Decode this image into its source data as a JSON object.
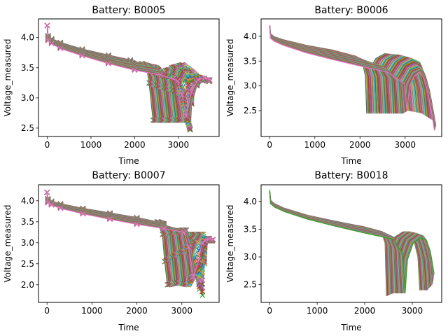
{
  "chart_data": [
    {
      "type": "line",
      "title": "Battery: B0005",
      "xlabel": "Time",
      "ylabel": "Voltage_measured",
      "xlim": [
        -200,
        3930
      ],
      "ylim": [
        2.36,
        4.31
      ],
      "xticks": [
        0,
        1000,
        2000,
        3000
      ],
      "yticks": [
        2.5,
        3.0,
        3.5,
        4.0
      ],
      "markers": "x",
      "series": [
        {
          "x": [
            0,
            20,
            100,
            300,
            800,
            1400,
            1900,
            2150,
            2280,
            2330,
            2420,
            2560,
            2700,
            2850,
            3000,
            3100
          ],
          "y": [
            4.2,
            4.03,
            3.98,
            3.92,
            3.81,
            3.71,
            3.63,
            3.57,
            3.48,
            3.25,
            2.63,
            3.2,
            3.45,
            3.5,
            3.37,
            3.3
          ]
        },
        {
          "x": [
            0,
            20,
            100,
            300,
            800,
            1400,
            1900,
            2300,
            2500,
            2560,
            2650,
            2780,
            2950,
            3100,
            3300,
            3420
          ],
          "y": [
            4.2,
            4.02,
            3.96,
            3.9,
            3.78,
            3.68,
            3.6,
            3.53,
            3.42,
            3.2,
            2.63,
            3.25,
            3.5,
            3.55,
            3.38,
            3.3
          ]
        },
        {
          "x": [
            0,
            20,
            100,
            300,
            800,
            1400,
            2000,
            2500,
            2750,
            2820,
            2900,
            3030,
            3200,
            3400,
            3560,
            3700
          ],
          "y": [
            4.2,
            4.0,
            3.95,
            3.88,
            3.76,
            3.64,
            3.56,
            3.5,
            3.38,
            3.15,
            2.63,
            3.2,
            3.4,
            3.38,
            3.32,
            3.3
          ]
        },
        {
          "x": [
            0,
            20,
            100,
            300,
            800,
            1400,
            2000,
            2600,
            3000,
            3120,
            3230,
            3270,
            3300,
            3420,
            3560,
            3700
          ],
          "y": [
            4.2,
            3.98,
            3.93,
            3.85,
            3.72,
            3.6,
            3.5,
            3.42,
            3.3,
            3.05,
            2.63,
            2.47,
            2.9,
            3.2,
            3.28,
            3.27
          ]
        },
        {
          "x": [
            0,
            20,
            100,
            300,
            800,
            1400,
            2000,
            2600,
            2980,
            3080,
            3180,
            3300,
            3450,
            3600,
            3720
          ],
          "y": [
            4.2,
            3.95,
            3.9,
            3.82,
            3.7,
            3.57,
            3.46,
            3.38,
            3.28,
            3.05,
            2.7,
            3.1,
            3.3,
            3.33,
            3.3
          ]
        }
      ]
    },
    {
      "type": "line",
      "title": "Battery: B0006",
      "xlabel": "Time",
      "ylabel": "Voltage_measured",
      "xlim": [
        -190,
        3810
      ],
      "ylim": [
        1.98,
        4.35
      ],
      "xticks": [
        0,
        1000,
        2000,
        3000
      ],
      "yticks": [
        2.5,
        3.0,
        3.5,
        4.0
      ],
      "markers": "",
      "series": [
        {
          "x": [
            0,
            20,
            100,
            300,
            800,
            1400,
            1900,
            2050,
            2120,
            2150,
            2200,
            2350,
            2550,
            2750,
            2900,
            3000,
            3050
          ],
          "y": [
            4.22,
            4.05,
            3.99,
            3.93,
            3.82,
            3.72,
            3.6,
            3.5,
            3.2,
            2.45,
            3.3,
            3.55,
            3.65,
            3.6,
            3.35,
            3.0,
            2.5
          ]
        },
        {
          "x": [
            0,
            20,
            100,
            300,
            800,
            1400,
            2000,
            2300,
            2420,
            2460,
            2520,
            2680,
            2880,
            3060,
            3200,
            3300,
            3360
          ],
          "y": [
            4.22,
            4.02,
            3.96,
            3.9,
            3.78,
            3.67,
            3.55,
            3.45,
            3.2,
            2.45,
            3.3,
            3.52,
            3.62,
            3.55,
            3.3,
            3.0,
            2.45
          ]
        },
        {
          "x": [
            0,
            20,
            100,
            300,
            800,
            1400,
            2000,
            2500,
            2680,
            2720,
            2780,
            2950,
            3150,
            3320,
            3450,
            3550,
            3620
          ],
          "y": [
            4.22,
            4.0,
            3.94,
            3.87,
            3.74,
            3.62,
            3.5,
            3.4,
            3.15,
            2.45,
            3.2,
            3.45,
            3.55,
            3.48,
            3.2,
            2.85,
            2.3
          ]
        },
        {
          "x": [
            0,
            20,
            100,
            300,
            800,
            1400,
            2000,
            2600,
            2900,
            2950,
            3000,
            3150,
            3300,
            3420,
            3540,
            3620,
            3680
          ],
          "y": [
            4.22,
            3.98,
            3.92,
            3.85,
            3.7,
            3.57,
            3.44,
            3.33,
            3.1,
            2.45,
            3.05,
            3.3,
            3.35,
            3.25,
            2.9,
            2.5,
            2.2
          ]
        },
        {
          "x": [
            0,
            20,
            100,
            300,
            800,
            1400,
            2000,
            2600,
            2980,
            3040,
            3100,
            3200,
            3320,
            3420,
            3520,
            3600,
            3650
          ],
          "y": [
            4.22,
            3.96,
            3.9,
            3.82,
            3.67,
            3.53,
            3.4,
            3.28,
            3.05,
            2.5,
            3.0,
            3.2,
            3.28,
            3.15,
            2.8,
            2.4,
            2.1
          ]
        }
      ]
    },
    {
      "type": "line",
      "title": "Battery: B0007",
      "xlabel": "Time",
      "ylabel": "Voltage_measured",
      "xlim": [
        -190,
        3830
      ],
      "ylim": [
        1.58,
        4.38
      ],
      "xticks": [
        0,
        1000,
        2000,
        3000
      ],
      "yticks": [
        2.0,
        2.5,
        3.0,
        3.5,
        4.0
      ],
      "markers": "x",
      "series": [
        {
          "x": [
            0,
            20,
            100,
            300,
            800,
            1400,
            2000,
            2450,
            2570,
            2620,
            2680,
            2760,
            2900,
            3050,
            3200,
            3300
          ],
          "y": [
            4.2,
            4.05,
            3.99,
            3.93,
            3.82,
            3.71,
            3.6,
            3.5,
            3.2,
            2.55,
            2.0,
            2.6,
            3.05,
            3.2,
            3.15,
            3.1
          ]
        },
        {
          "x": [
            0,
            20,
            100,
            300,
            800,
            1400,
            2000,
            2600,
            2800,
            2860,
            2920,
            3020,
            3160,
            3300,
            3420,
            3500
          ],
          "y": [
            4.2,
            4.02,
            3.97,
            3.9,
            3.79,
            3.67,
            3.56,
            3.45,
            3.25,
            2.7,
            2.05,
            2.6,
            3.05,
            3.2,
            3.1,
            3.05
          ]
        },
        {
          "x": [
            0,
            20,
            100,
            300,
            800,
            1400,
            2000,
            2600,
            3000,
            3080,
            3150,
            3250,
            3370,
            3480,
            3600,
            3680
          ],
          "y": [
            4.2,
            4.0,
            3.95,
            3.88,
            3.76,
            3.64,
            3.52,
            3.42,
            3.3,
            2.8,
            2.0,
            2.7,
            3.0,
            3.2,
            3.1,
            3.05
          ]
        },
        {
          "x": [
            0,
            20,
            100,
            300,
            800,
            1400,
            2000,
            2600,
            3100,
            3200,
            3300,
            3400,
            3460,
            3500,
            3580,
            3660
          ],
          "y": [
            4.2,
            3.98,
            3.92,
            3.85,
            3.72,
            3.6,
            3.48,
            3.38,
            3.3,
            3.0,
            2.3,
            1.9,
            1.75,
            2.5,
            3.1,
            3.05
          ]
        },
        {
          "x": [
            0,
            20,
            100,
            300,
            800,
            1400,
            2000,
            2600,
            3050,
            3150,
            3260,
            3380,
            3450,
            3520,
            3620,
            3700
          ],
          "y": [
            4.2,
            3.95,
            3.9,
            3.82,
            3.69,
            3.56,
            3.44,
            3.34,
            3.25,
            2.9,
            2.2,
            2.6,
            3.0,
            3.05,
            3.1,
            3.08
          ]
        }
      ]
    },
    {
      "type": "line",
      "title": "Battery: B0018",
      "xlabel": "Time",
      "ylabel": "Voltage_measured",
      "xlim": [
        -180,
        3620
      ],
      "ylim": [
        2.18,
        4.3
      ],
      "xticks": [
        0,
        1000,
        2000,
        3000
      ],
      "yticks": [
        2.5,
        3.0,
        3.5,
        4.0
      ],
      "markers": "",
      "series": [
        {
          "x": [
            0,
            20,
            100,
            300,
            800,
            1400,
            2000,
            2350,
            2430,
            2460,
            2500,
            2620,
            2800,
            2950,
            3050,
            3120,
            3160
          ],
          "y": [
            4.2,
            4.02,
            3.96,
            3.88,
            3.75,
            3.64,
            3.54,
            3.46,
            3.25,
            2.3,
            3.1,
            3.35,
            3.45,
            3.45,
            3.25,
            3.0,
            2.4
          ]
        },
        {
          "x": [
            0,
            20,
            100,
            300,
            800,
            1400,
            2000,
            2450,
            2560,
            2590,
            2630,
            2760,
            2950,
            3100,
            3200,
            3270,
            3310
          ],
          "y": [
            4.2,
            4.0,
            3.94,
            3.86,
            3.73,
            3.61,
            3.5,
            3.42,
            3.2,
            2.35,
            3.05,
            3.32,
            3.45,
            3.42,
            3.2,
            2.95,
            2.4
          ]
        },
        {
          "x": [
            0,
            20,
            100,
            300,
            800,
            1400,
            2000,
            2600,
            2700,
            2740,
            2780,
            2900,
            3080,
            3230,
            3330,
            3390,
            3420
          ],
          "y": [
            4.2,
            3.98,
            3.92,
            3.84,
            3.7,
            3.57,
            3.46,
            3.36,
            3.1,
            2.35,
            3.0,
            3.3,
            3.42,
            3.38,
            3.15,
            2.9,
            2.5
          ]
        },
        {
          "x": [
            0,
            20,
            100,
            300,
            800,
            1400,
            2000,
            2600,
            2800,
            2850,
            2900,
            3020,
            3180,
            3300,
            3380,
            3430,
            3460
          ],
          "y": [
            4.2,
            3.96,
            3.9,
            3.82,
            3.68,
            3.55,
            3.43,
            3.32,
            3.05,
            2.35,
            2.95,
            3.25,
            3.35,
            3.3,
            3.1,
            2.85,
            2.7
          ]
        }
      ]
    }
  ]
}
